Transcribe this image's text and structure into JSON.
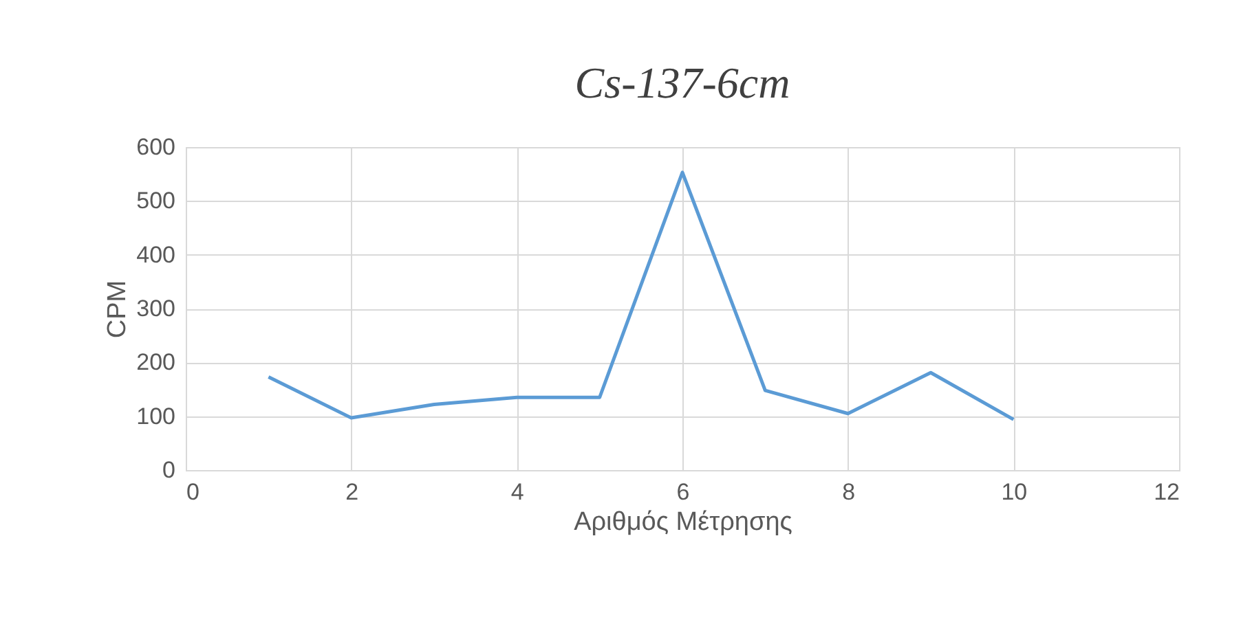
{
  "chart_data": {
    "type": "line",
    "title": "Cs-137-6cm",
    "xlabel": "Αριθμός Μέτρησης",
    "ylabel": "CPM",
    "x": [
      1,
      2,
      3,
      4,
      5,
      6,
      7,
      8,
      9,
      10
    ],
    "series": [
      {
        "color": "#5b9bd5",
        "values": [
          173,
          97,
          122,
          135,
          135,
          553,
          148,
          105,
          181,
          94
        ]
      }
    ],
    "xlim": [
      0,
      12
    ],
    "xticks": [
      0,
      2,
      4,
      6,
      8,
      10,
      12
    ],
    "ylim": [
      0,
      600
    ],
    "yticks": [
      0,
      100,
      200,
      300,
      400,
      500,
      600
    ],
    "grid": true,
    "marker": "none",
    "line_style": "solid"
  }
}
